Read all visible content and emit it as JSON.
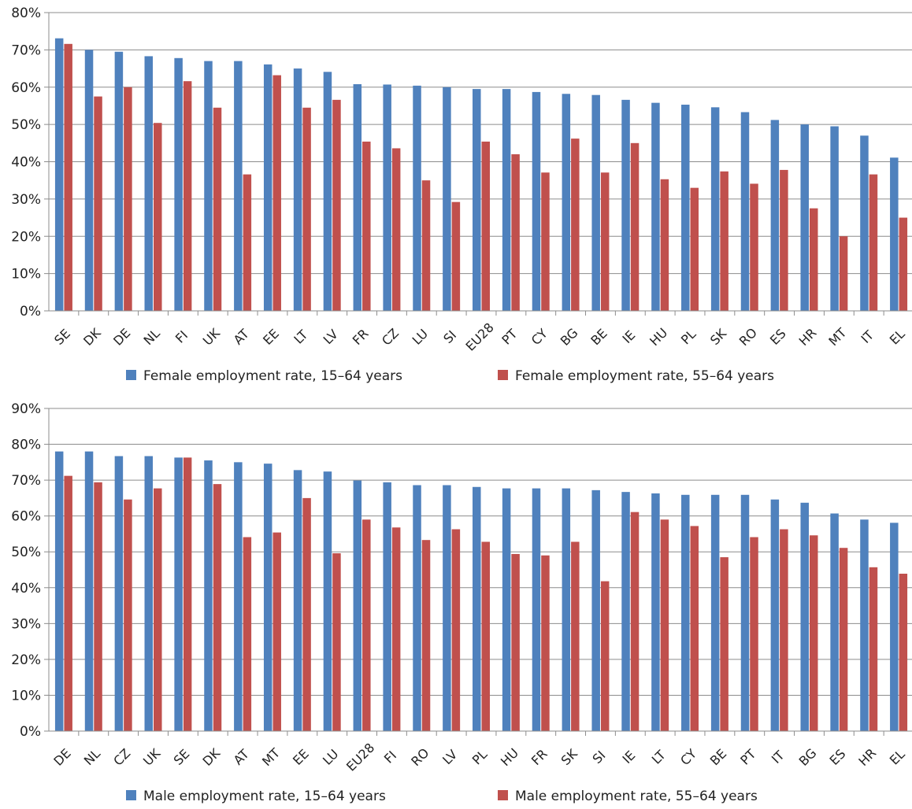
{
  "colors": {
    "series1": "#4f81bd",
    "series2": "#c0504d",
    "axis": "#8c8c8c"
  },
  "chart_data": [
    {
      "type": "bar",
      "title": "",
      "xlabel": "",
      "ylabel": "",
      "ylim": [
        0,
        80
      ],
      "y_tick_step": 10,
      "y_tick_labels": [
        "0%",
        "10%",
        "20%",
        "30%",
        "40%",
        "50%",
        "60%",
        "70%",
        "80%"
      ],
      "grid": true,
      "legend": "bottom",
      "categories": [
        "SE",
        "DK",
        "DE",
        "NL",
        "FI",
        "UK",
        "AT",
        "EE",
        "LT",
        "LV",
        "FR",
        "CZ",
        "LU",
        "SI",
        "EU28",
        "PT",
        "CY",
        "BG",
        "BE",
        "IE",
        "HU",
        "PL",
        "SK",
        "RO",
        "ES",
        "HR",
        "MT",
        "IT",
        "EL"
      ],
      "series": [
        {
          "name": "Female employment rate, 15–64 years",
          "values": [
            73.1,
            70.0,
            69.5,
            68.3,
            67.8,
            67.0,
            67.0,
            66.1,
            65.0,
            64.1,
            60.8,
            60.7,
            60.4,
            60.0,
            59.5,
            59.5,
            58.7,
            58.2,
            57.9,
            56.6,
            55.8,
            55.3,
            54.6,
            53.3,
            51.2,
            50.0,
            49.5,
            47.0,
            41.1
          ]
        },
        {
          "name": "Female employment rate, 55–64 years",
          "values": [
            71.6,
            57.5,
            60.0,
            50.4,
            61.6,
            54.5,
            36.6,
            63.2,
            54.5,
            56.6,
            45.4,
            43.6,
            35.0,
            29.2,
            45.4,
            42.0,
            37.1,
            46.2,
            37.1,
            45.0,
            35.3,
            33.0,
            37.4,
            34.1,
            37.8,
            27.5,
            20.0,
            36.6,
            25.0
          ]
        }
      ]
    },
    {
      "type": "bar",
      "title": "",
      "xlabel": "",
      "ylabel": "",
      "ylim": [
        0,
        90
      ],
      "y_tick_step": 10,
      "y_tick_labels": [
        "0%",
        "10%",
        "20%",
        "30%",
        "40%",
        "50%",
        "60%",
        "70%",
        "80%",
        "90%"
      ],
      "grid": true,
      "legend": "bottom",
      "categories": [
        "DE",
        "NL",
        "CZ",
        "UK",
        "SE",
        "DK",
        "AT",
        "MT",
        "EE",
        "LU",
        "EU28",
        "FI",
        "RO",
        "LV",
        "PL",
        "HU",
        "FR",
        "SK",
        "SI",
        "IE",
        "LT",
        "CY",
        "BE",
        "PT",
        "IT",
        "BG",
        "ES",
        "HR",
        "EL"
      ],
      "series": [
        {
          "name": "Male employment rate, 15–64 years",
          "values": [
            78.0,
            78.0,
            76.7,
            76.7,
            76.3,
            75.5,
            75.0,
            74.6,
            72.8,
            72.4,
            69.9,
            69.4,
            68.6,
            68.6,
            68.1,
            67.7,
            67.7,
            67.7,
            67.2,
            66.7,
            66.3,
            65.9,
            65.9,
            65.9,
            64.6,
            63.7,
            60.7,
            59.0,
            58.1
          ]
        },
        {
          "name": "Male employment rate, 55–64 years",
          "values": [
            71.2,
            69.4,
            64.6,
            67.7,
            76.3,
            68.9,
            54.1,
            55.4,
            65.0,
            49.6,
            59.0,
            56.8,
            53.3,
            56.3,
            52.8,
            49.4,
            49.0,
            52.8,
            41.8,
            61.1,
            59.0,
            57.2,
            48.5,
            54.1,
            56.3,
            54.6,
            51.1,
            45.7,
            43.9
          ]
        }
      ]
    }
  ]
}
